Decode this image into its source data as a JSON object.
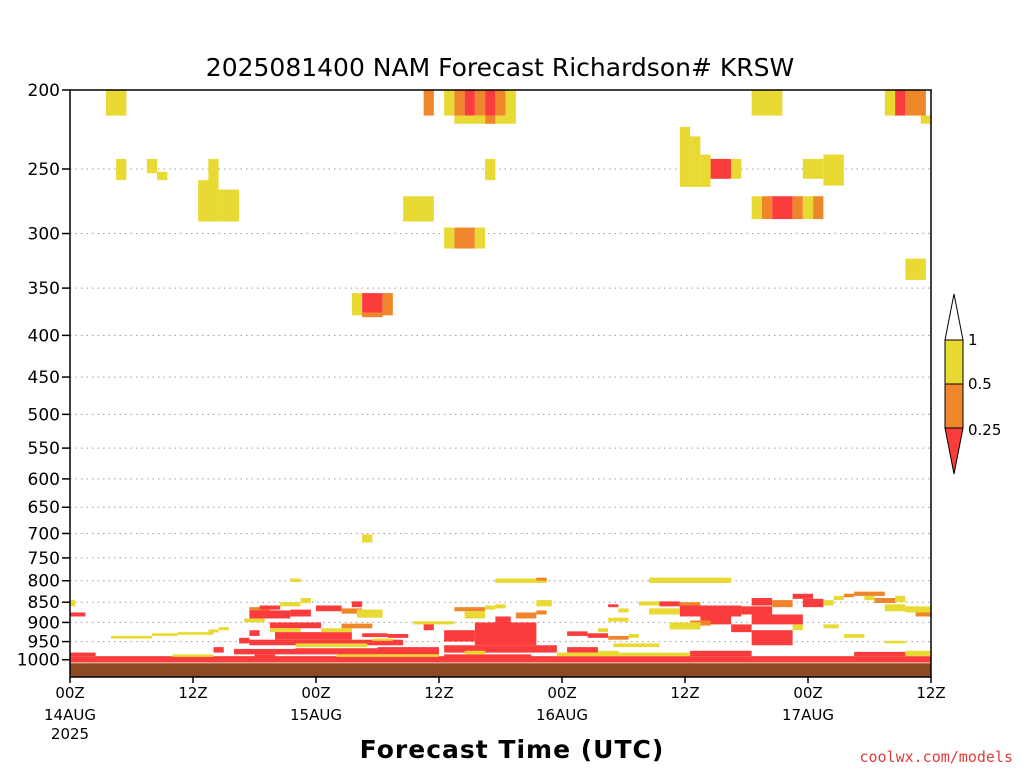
{
  "chart_data": {
    "type": "heatmap",
    "title": "2025081400 NAM Forecast Richardson# KRSW",
    "xlabel": "Forecast Time (UTC)",
    "ylabel": "",
    "credit": "coolwx.com/models",
    "y_scale": "log",
    "y_reversed": true,
    "y_range": [
      1050,
      200
    ],
    "y_ticks": [
      200,
      250,
      300,
      350,
      400,
      450,
      500,
      550,
      600,
      650,
      700,
      750,
      800,
      850,
      900,
      950,
      1000
    ],
    "y_tick_labels": [
      "200",
      "250",
      "300",
      "350",
      "400",
      "450",
      "500",
      "550",
      "600",
      "650",
      "700",
      "750",
      "800",
      "850",
      "900",
      "950",
      "1000"
    ],
    "x_unit": "forecast hour",
    "x_range": [
      0,
      84
    ],
    "x_ticks": [
      {
        "hour": 0,
        "label": "00Z",
        "sub1": "14AUG",
        "sub2": "2025"
      },
      {
        "hour": 12,
        "label": "12Z",
        "sub1": "",
        "sub2": ""
      },
      {
        "hour": 24,
        "label": "00Z",
        "sub1": "15AUG",
        "sub2": ""
      },
      {
        "hour": 36,
        "label": "12Z",
        "sub1": "",
        "sub2": ""
      },
      {
        "hour": 48,
        "label": "00Z",
        "sub1": "16AUG",
        "sub2": ""
      },
      {
        "hour": 60,
        "label": "12Z",
        "sub1": "",
        "sub2": ""
      },
      {
        "hour": 72,
        "label": "00Z",
        "sub1": "17AUG",
        "sub2": ""
      },
      {
        "hour": 84,
        "label": "12Z",
        "sub1": "",
        "sub2": ""
      }
    ],
    "grid": "dotted horizontal at pressure ticks",
    "legend": {
      "placement": "right",
      "labels": [
        "1",
        "0.5",
        "0.25"
      ],
      "classes": [
        {
          "range": "0.5-1",
          "color": "#e8da32"
        },
        {
          "range": "0.25-0.5",
          "color": "#f0862c"
        },
        {
          "range": "<0.25",
          "color": "#fa3c3c"
        }
      ]
    },
    "colors": {
      "low": "#fa3c3c",
      "mid": "#f0862c",
      "high": "#e8da32",
      "ground": "#8b4a22"
    },
    "surface_pressure": 1010,
    "cells": [
      {
        "h0": 3.5,
        "h1": 5.5,
        "p0": 200,
        "p1": 215,
        "c": "high"
      },
      {
        "h0": 4.5,
        "h1": 5.5,
        "p0": 243,
        "p1": 258,
        "c": "high"
      },
      {
        "h0": 7.5,
        "h1": 8.5,
        "p0": 243,
        "p1": 253,
        "c": "high"
      },
      {
        "h0": 8.5,
        "h1": 9.5,
        "p0": 252,
        "p1": 258,
        "c": "high"
      },
      {
        "h0": 13.5,
        "h1": 14.5,
        "p0": 243,
        "p1": 258,
        "c": "high"
      },
      {
        "h0": 12.5,
        "h1": 14.5,
        "p0": 258,
        "p1": 290,
        "c": "high"
      },
      {
        "h0": 14.5,
        "h1": 16.5,
        "p0": 265,
        "p1": 290,
        "c": "high"
      },
      {
        "h0": 27.5,
        "h1": 28.5,
        "p0": 355,
        "p1": 378,
        "c": "high"
      },
      {
        "h0": 28.5,
        "h1": 30.5,
        "p0": 355,
        "p1": 375,
        "c": "low"
      },
      {
        "h0": 28.5,
        "h1": 30.5,
        "p0": 375,
        "p1": 380,
        "c": "mid"
      },
      {
        "h0": 30.5,
        "h1": 31.5,
        "p0": 355,
        "p1": 378,
        "c": "mid"
      },
      {
        "h0": 32.5,
        "h1": 35.5,
        "p0": 270,
        "p1": 290,
        "c": "high"
      },
      {
        "h0": 34.5,
        "h1": 35.5,
        "p0": 200,
        "p1": 215,
        "c": "mid"
      },
      {
        "h0": 36.5,
        "h1": 37.5,
        "p0": 200,
        "p1": 215,
        "c": "high"
      },
      {
        "h0": 37.5,
        "h1": 38.5,
        "p0": 200,
        "p1": 215,
        "c": "mid"
      },
      {
        "h0": 38.5,
        "h1": 39.5,
        "p0": 200,
        "p1": 215,
        "c": "low"
      },
      {
        "h0": 39.5,
        "h1": 40.5,
        "p0": 200,
        "p1": 215,
        "c": "mid"
      },
      {
        "h0": 40.5,
        "h1": 41.5,
        "p0": 200,
        "p1": 215,
        "c": "low"
      },
      {
        "h0": 41.5,
        "h1": 42.5,
        "p0": 200,
        "p1": 215,
        "c": "mid"
      },
      {
        "h0": 42.5,
        "h1": 43.5,
        "p0": 200,
        "p1": 215,
        "c": "high"
      },
      {
        "h0": 37.5,
        "h1": 41.5,
        "p0": 215,
        "p1": 220,
        "c": "high"
      },
      {
        "h0": 40.5,
        "h1": 41.5,
        "p0": 215,
        "p1": 220,
        "c": "mid"
      },
      {
        "h0": 41.5,
        "h1": 43.5,
        "p0": 215,
        "p1": 220,
        "c": "high"
      },
      {
        "h0": 40.5,
        "h1": 41.5,
        "p0": 243,
        "p1": 258,
        "c": "high"
      },
      {
        "h0": 36.5,
        "h1": 37.5,
        "p0": 295,
        "p1": 313,
        "c": "high"
      },
      {
        "h0": 37.5,
        "h1": 39.5,
        "p0": 295,
        "p1": 313,
        "c": "mid"
      },
      {
        "h0": 39.5,
        "h1": 40.5,
        "p0": 295,
        "p1": 313,
        "c": "high"
      },
      {
        "h0": 59.5,
        "h1": 60.5,
        "p0": 222,
        "p1": 263,
        "c": "high"
      },
      {
        "h0": 60.5,
        "h1": 61.5,
        "p0": 228,
        "p1": 263,
        "c": "high"
      },
      {
        "h0": 61.5,
        "h1": 62.5,
        "p0": 240,
        "p1": 263,
        "c": "high"
      },
      {
        "h0": 62.5,
        "h1": 64.5,
        "p0": 243,
        "p1": 257,
        "c": "low"
      },
      {
        "h0": 64.5,
        "h1": 65.5,
        "p0": 243,
        "p1": 257,
        "c": "high"
      },
      {
        "h0": 66.5,
        "h1": 67.5,
        "p0": 270,
        "p1": 288,
        "c": "high"
      },
      {
        "h0": 67.5,
        "h1": 68.5,
        "p0": 270,
        "p1": 288,
        "c": "mid"
      },
      {
        "h0": 68.5,
        "h1": 70.5,
        "p0": 270,
        "p1": 288,
        "c": "low"
      },
      {
        "h0": 70.5,
        "h1": 71.5,
        "p0": 270,
        "p1": 288,
        "c": "mid"
      },
      {
        "h0": 71.5,
        "h1": 72.5,
        "p0": 270,
        "p1": 288,
        "c": "high"
      },
      {
        "h0": 72.5,
        "h1": 73.5,
        "p0": 270,
        "p1": 288,
        "c": "mid"
      },
      {
        "h0": 66.5,
        "h1": 69.5,
        "p0": 200,
        "p1": 215,
        "c": "high"
      },
      {
        "h0": 71.5,
        "h1": 73.5,
        "p0": 243,
        "p1": 257,
        "c": "high"
      },
      {
        "h0": 73.5,
        "h1": 75.5,
        "p0": 240,
        "p1": 262,
        "c": "high"
      },
      {
        "h0": 79.5,
        "h1": 80.5,
        "p0": 200,
        "p1": 215,
        "c": "high"
      },
      {
        "h0": 80.5,
        "h1": 81.5,
        "p0": 200,
        "p1": 215,
        "c": "low"
      },
      {
        "h0": 81.5,
        "h1": 83.5,
        "p0": 200,
        "p1": 215,
        "c": "mid"
      },
      {
        "h0": 83.0,
        "h1": 84.0,
        "p0": 215,
        "p1": 220,
        "c": "high"
      },
      {
        "h0": 81.5,
        "h1": 83.5,
        "p0": 322,
        "p1": 342,
        "c": "high"
      },
      {
        "h0": 28.5,
        "h1": 29.5,
        "p0": 702,
        "p1": 718,
        "c": "high"
      },
      {
        "h0": 21.5,
        "h1": 22.5,
        "p0": 795,
        "p1": 803,
        "c": "high"
      },
      {
        "h0": 41.5,
        "h1": 46.5,
        "p0": 795,
        "p1": 805,
        "c": "high"
      },
      {
        "h0": 45.5,
        "h1": 46.5,
        "p0": 793,
        "p1": 800,
        "c": "mid"
      },
      {
        "h0": 56.5,
        "h1": 64.5,
        "p0": 793,
        "p1": 805,
        "c": "high"
      },
      {
        "h0": 0.0,
        "h1": 0.5,
        "p0": 845,
        "p1": 860,
        "c": "high"
      },
      {
        "h0": 0.0,
        "h1": 1.5,
        "p0": 875,
        "p1": 885,
        "c": "low"
      },
      {
        "h0": 4.0,
        "h1": 8.0,
        "p0": 935,
        "p1": 942,
        "c": "high"
      },
      {
        "h0": 8.0,
        "h1": 10.5,
        "p0": 928,
        "p1": 935,
        "c": "high"
      },
      {
        "h0": 10.5,
        "h1": 14.0,
        "p0": 925,
        "p1": 932,
        "c": "high"
      },
      {
        "h0": 13.5,
        "h1": 14.5,
        "p0": 918,
        "p1": 926,
        "c": "high"
      },
      {
        "h0": 14.5,
        "h1": 15.5,
        "p0": 912,
        "p1": 920,
        "c": "high"
      },
      {
        "h0": 17.5,
        "h1": 19.5,
        "p0": 862,
        "p1": 872,
        "c": "mid"
      },
      {
        "h0": 18.5,
        "h1": 20.5,
        "p0": 858,
        "p1": 868,
        "c": "low"
      },
      {
        "h0": 20.5,
        "h1": 22.5,
        "p0": 850,
        "p1": 860,
        "c": "high"
      },
      {
        "h0": 22.5,
        "h1": 23.5,
        "p0": 840,
        "p1": 852,
        "c": "high"
      },
      {
        "h0": 17.5,
        "h1": 21.5,
        "p0": 870,
        "p1": 890,
        "c": "low"
      },
      {
        "h0": 21.5,
        "h1": 23.5,
        "p0": 868,
        "p1": 885,
        "c": "low"
      },
      {
        "h0": 17.0,
        "h1": 19.0,
        "p0": 890,
        "p1": 900,
        "c": "high"
      },
      {
        "h0": 24.0,
        "h1": 26.5,
        "p0": 858,
        "p1": 872,
        "c": "low"
      },
      {
        "h0": 26.5,
        "h1": 28.5,
        "p0": 865,
        "p1": 878,
        "c": "mid"
      },
      {
        "h0": 28.0,
        "h1": 30.5,
        "p0": 868,
        "p1": 888,
        "c": "high"
      },
      {
        "h0": 27.5,
        "h1": 28.5,
        "p0": 848,
        "p1": 862,
        "c": "low"
      },
      {
        "h0": 17.5,
        "h1": 18.5,
        "p0": 920,
        "p1": 935,
        "c": "low"
      },
      {
        "h0": 19.5,
        "h1": 24.5,
        "p0": 900,
        "p1": 915,
        "c": "low"
      },
      {
        "h0": 19.5,
        "h1": 22.5,
        "p0": 915,
        "p1": 925,
        "c": "high"
      },
      {
        "h0": 20.0,
        "h1": 27.5,
        "p0": 925,
        "p1": 945,
        "c": "low"
      },
      {
        "h0": 24.5,
        "h1": 27.5,
        "p0": 915,
        "p1": 925,
        "c": "high"
      },
      {
        "h0": 26.5,
        "h1": 29.5,
        "p0": 903,
        "p1": 915,
        "c": "mid"
      },
      {
        "h0": 16.5,
        "h1": 17.5,
        "p0": 940,
        "p1": 955,
        "c": "low"
      },
      {
        "h0": 17.5,
        "h1": 32.5,
        "p0": 945,
        "p1": 960,
        "c": "low"
      },
      {
        "h0": 22.0,
        "h1": 29.0,
        "p0": 955,
        "p1": 965,
        "c": "high"
      },
      {
        "h0": 14.0,
        "h1": 15.0,
        "p0": 965,
        "p1": 980,
        "c": "low"
      },
      {
        "h0": 16.0,
        "h1": 22.0,
        "p0": 970,
        "p1": 985,
        "c": "low"
      },
      {
        "h0": 18.0,
        "h1": 20.0,
        "p0": 985,
        "p1": 995,
        "c": "low"
      },
      {
        "h0": 22.0,
        "h1": 30.0,
        "p0": 968,
        "p1": 985,
        "c": "low"
      },
      {
        "h0": 30.0,
        "h1": 36.0,
        "p0": 965,
        "p1": 985,
        "c": "low"
      },
      {
        "h0": 28.5,
        "h1": 31.0,
        "p0": 928,
        "p1": 938,
        "c": "low"
      },
      {
        "h0": 31.0,
        "h1": 33.0,
        "p0": 930,
        "p1": 940,
        "c": "low"
      },
      {
        "h0": 29.5,
        "h1": 31.5,
        "p0": 942,
        "p1": 948,
        "c": "high"
      },
      {
        "h0": 33.5,
        "h1": 37.5,
        "p0": 897,
        "p1": 905,
        "c": "high"
      },
      {
        "h0": 34.5,
        "h1": 35.5,
        "p0": 905,
        "p1": 920,
        "c": "low"
      },
      {
        "h0": 37.5,
        "h1": 40.5,
        "p0": 862,
        "p1": 872,
        "c": "mid"
      },
      {
        "h0": 38.5,
        "h1": 40.5,
        "p0": 872,
        "p1": 890,
        "c": "high"
      },
      {
        "h0": 40.5,
        "h1": 41.5,
        "p0": 858,
        "p1": 868,
        "c": "high"
      },
      {
        "h0": 41.5,
        "h1": 42.5,
        "p0": 855,
        "p1": 865,
        "c": "high"
      },
      {
        "h0": 36.5,
        "h1": 39.5,
        "p0": 920,
        "p1": 950,
        "c": "low"
      },
      {
        "h0": 39.5,
        "h1": 45.5,
        "p0": 900,
        "p1": 960,
        "c": "low"
      },
      {
        "h0": 41.5,
        "h1": 43.0,
        "p0": 885,
        "p1": 905,
        "c": "low"
      },
      {
        "h0": 43.5,
        "h1": 45.5,
        "p0": 875,
        "p1": 890,
        "c": "mid"
      },
      {
        "h0": 45.5,
        "h1": 46.5,
        "p0": 870,
        "p1": 880,
        "c": "mid"
      },
      {
        "h0": 45.5,
        "h1": 47.0,
        "p0": 845,
        "p1": 860,
        "c": "high"
      },
      {
        "h0": 36.5,
        "h1": 47.5,
        "p0": 960,
        "p1": 980,
        "c": "low"
      },
      {
        "h0": 36.5,
        "h1": 45.0,
        "p0": 985,
        "p1": 1000,
        "c": "low"
      },
      {
        "h0": 38.5,
        "h1": 40.5,
        "p0": 975,
        "p1": 985,
        "c": "high"
      },
      {
        "h0": 48.5,
        "h1": 50.5,
        "p0": 923,
        "p1": 935,
        "c": "low"
      },
      {
        "h0": 50.5,
        "h1": 52.5,
        "p0": 928,
        "p1": 940,
        "c": "low"
      },
      {
        "h0": 51.5,
        "h1": 52.5,
        "p0": 915,
        "p1": 925,
        "c": "high"
      },
      {
        "h0": 52.5,
        "h1": 54.5,
        "p0": 935,
        "p1": 945,
        "c": "mid"
      },
      {
        "h0": 54.5,
        "h1": 55.5,
        "p0": 930,
        "p1": 940,
        "c": "high"
      },
      {
        "h0": 53.0,
        "h1": 56.0,
        "p0": 955,
        "p1": 965,
        "c": "high"
      },
      {
        "h0": 48.5,
        "h1": 51.5,
        "p0": 965,
        "p1": 980,
        "c": "low"
      },
      {
        "h0": 51.5,
        "h1": 53.5,
        "p0": 975,
        "p1": 985,
        "c": "high"
      },
      {
        "h0": 52.5,
        "h1": 53.5,
        "p0": 855,
        "p1": 862,
        "c": "low"
      },
      {
        "h0": 53.5,
        "h1": 54.5,
        "p0": 865,
        "p1": 875,
        "c": "high"
      },
      {
        "h0": 52.5,
        "h1": 54.5,
        "p0": 888,
        "p1": 898,
        "c": "high"
      },
      {
        "h0": 55.5,
        "h1": 57.5,
        "p0": 848,
        "p1": 858,
        "c": "high"
      },
      {
        "h0": 57.5,
        "h1": 59.5,
        "p0": 848,
        "p1": 860,
        "c": "low"
      },
      {
        "h0": 59.5,
        "h1": 61.5,
        "p0": 850,
        "p1": 862,
        "c": "mid"
      },
      {
        "h0": 56.5,
        "h1": 62.5,
        "p0": 865,
        "p1": 880,
        "c": "high"
      },
      {
        "h0": 59.5,
        "h1": 65.5,
        "p0": 858,
        "p1": 885,
        "c": "low"
      },
      {
        "h0": 61.5,
        "h1": 64.5,
        "p0": 885,
        "p1": 905,
        "c": "low"
      },
      {
        "h0": 60.5,
        "h1": 62.5,
        "p0": 895,
        "p1": 908,
        "c": "mid"
      },
      {
        "h0": 58.5,
        "h1": 61.5,
        "p0": 900,
        "p1": 918,
        "c": "high"
      },
      {
        "h0": 65.5,
        "h1": 68.5,
        "p0": 860,
        "p1": 880,
        "c": "low"
      },
      {
        "h0": 66.5,
        "h1": 68.5,
        "p0": 840,
        "p1": 858,
        "c": "low"
      },
      {
        "h0": 68.5,
        "h1": 70.5,
        "p0": 845,
        "p1": 862,
        "c": "mid"
      },
      {
        "h0": 70.5,
        "h1": 72.5,
        "p0": 830,
        "p1": 842,
        "c": "low"
      },
      {
        "h0": 71.5,
        "h1": 73.5,
        "p0": 842,
        "p1": 862,
        "c": "low"
      },
      {
        "h0": 73.5,
        "h1": 74.5,
        "p0": 845,
        "p1": 858,
        "c": "high"
      },
      {
        "h0": 66.5,
        "h1": 71.5,
        "p0": 880,
        "p1": 905,
        "c": "low"
      },
      {
        "h0": 64.5,
        "h1": 66.5,
        "p0": 905,
        "p1": 925,
        "c": "low"
      },
      {
        "h0": 66.5,
        "h1": 70.5,
        "p0": 920,
        "p1": 960,
        "c": "low"
      },
      {
        "h0": 70.5,
        "h1": 71.5,
        "p0": 905,
        "p1": 920,
        "c": "high"
      },
      {
        "h0": 73.5,
        "h1": 75.0,
        "p0": 905,
        "p1": 915,
        "c": "high"
      },
      {
        "h0": 74.5,
        "h1": 75.5,
        "p0": 835,
        "p1": 845,
        "c": "high"
      },
      {
        "h0": 75.5,
        "h1": 76.5,
        "p0": 830,
        "p1": 838,
        "c": "mid"
      },
      {
        "h0": 76.5,
        "h1": 79.5,
        "p0": 825,
        "p1": 835,
        "c": "mid"
      },
      {
        "h0": 77.5,
        "h1": 78.5,
        "p0": 835,
        "p1": 845,
        "c": "high"
      },
      {
        "h0": 78.5,
        "h1": 80.5,
        "p0": 840,
        "p1": 852,
        "c": "mid"
      },
      {
        "h0": 80.5,
        "h1": 81.5,
        "p0": 835,
        "p1": 850,
        "c": "high"
      },
      {
        "h0": 79.5,
        "h1": 81.5,
        "p0": 855,
        "p1": 872,
        "c": "high"
      },
      {
        "h0": 81.5,
        "h1": 84.0,
        "p0": 860,
        "p1": 875,
        "c": "high"
      },
      {
        "h0": 82.5,
        "h1": 84.0,
        "p0": 875,
        "p1": 885,
        "c": "mid"
      },
      {
        "h0": 75.5,
        "h1": 77.5,
        "p0": 930,
        "p1": 940,
        "c": "high"
      },
      {
        "h0": 79.5,
        "h1": 81.5,
        "p0": 948,
        "p1": 955,
        "c": "high"
      },
      {
        "h0": 55.5,
        "h1": 57.5,
        "p0": 955,
        "p1": 965,
        "c": "high"
      },
      {
        "h0": 0.0,
        "h1": 84.0,
        "p0": 990,
        "p1": 1008,
        "c": "low"
      },
      {
        "h0": 0.0,
        "h1": 2.5,
        "p0": 980,
        "p1": 990,
        "c": "low"
      },
      {
        "h0": 10.0,
        "h1": 14.0,
        "p0": 985,
        "p1": 992,
        "c": "high"
      },
      {
        "h0": 26.0,
        "h1": 36.0,
        "p0": 985,
        "p1": 992,
        "c": "high"
      },
      {
        "h0": 47.5,
        "h1": 55.5,
        "p0": 980,
        "p1": 990,
        "c": "high"
      },
      {
        "h0": 55.5,
        "h1": 60.5,
        "p0": 980,
        "p1": 990,
        "c": "high"
      },
      {
        "h0": 60.5,
        "h1": 66.5,
        "p0": 975,
        "p1": 990,
        "c": "low"
      },
      {
        "h0": 76.5,
        "h1": 81.5,
        "p0": 978,
        "p1": 990,
        "c": "low"
      },
      {
        "h0": 81.5,
        "h1": 84.0,
        "p0": 975,
        "p1": 990,
        "c": "high"
      }
    ]
  }
}
